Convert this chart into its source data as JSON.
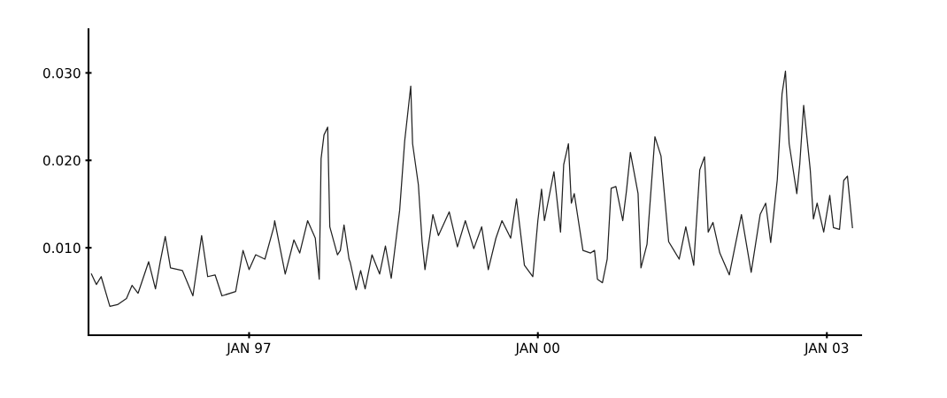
{
  "chart_data": {
    "type": "line",
    "x": [
      "1995-05-14",
      "1995-06-02",
      "1995-06-20",
      "1995-07-23",
      "1995-08-21",
      "1995-09-24",
      "1995-10-15",
      "1995-11-07",
      "1995-12-17",
      "1996-01-12",
      "1996-01-30",
      "1996-02-18",
      "1996-03-09",
      "1996-04-23",
      "1996-06-02",
      "1996-07-05",
      "1996-07-28",
      "1996-08-25",
      "1996-09-20",
      "1996-11-11",
      "1996-12-09",
      "1997-01-01",
      "1997-01-26",
      "1997-03-02",
      "1997-04-05",
      "1997-04-08",
      "1997-05-18",
      "1997-06-20",
      "1997-07-12",
      "1997-08-11",
      "1997-09-09",
      "1997-09-24",
      "1997-10-01",
      "1997-10-12",
      "1997-10-26",
      "1997-11-03",
      "1997-12-02",
      "1997-12-13",
      "1997-12-27",
      "1998-01-15",
      "1998-01-19",
      "1998-02-11",
      "1998-02-28",
      "1998-03-17",
      "1998-04-12",
      "1998-05-11",
      "1998-06-02",
      "1998-06-24",
      "1998-07-26",
      "1998-08-14",
      "1998-09-06",
      "1998-09-13",
      "1998-10-05",
      "1998-10-19",
      "1998-10-30",
      "1998-11-29",
      "1998-12-20",
      "1999-01-30",
      "1999-03-02",
      "1999-04-01",
      "1999-05-03",
      "1999-06-02",
      "1999-06-27",
      "1999-07-26",
      "1999-08-18",
      "1999-09-20",
      "1999-10-12",
      "1999-11-11",
      "1999-12-13",
      "2000-01-01",
      "2000-01-15",
      "2000-01-26",
      "2000-03-02",
      "2000-03-27",
      "2000-04-08",
      "2000-04-26",
      "2000-05-07",
      "2000-05-18",
      "2000-06-20",
      "2000-07-19",
      "2000-08-03",
      "2000-08-14",
      "2000-09-02",
      "2000-09-20",
      "2000-10-05",
      "2000-10-23",
      "2000-11-18",
      "2000-12-02",
      "2000-12-17",
      "2001-01-15",
      "2001-01-26",
      "2001-02-18",
      "2001-03-20",
      "2001-04-12",
      "2001-05-11",
      "2001-06-20",
      "2001-07-15",
      "2001-08-14",
      "2001-09-06",
      "2001-09-24",
      "2001-10-08",
      "2001-10-26",
      "2001-11-21",
      "2001-12-27",
      "2002-02-11",
      "2002-03-20",
      "2002-04-23",
      "2002-05-14",
      "2002-06-02",
      "2002-06-27",
      "2002-07-15",
      "2002-07-28",
      "2002-08-11",
      "2002-09-09",
      "2002-09-20",
      "2002-10-05",
      "2002-10-30",
      "2002-11-11",
      "2002-11-25",
      "2002-12-20",
      "2003-01-12",
      "2003-01-26",
      "2003-02-18",
      "2003-03-06",
      "2003-03-20",
      "2003-04-08"
    ],
    "series": [
      {
        "color": "#222222",
        "values": [
          0.007,
          0.0058,
          0.0067,
          0.0033,
          0.0035,
          0.0042,
          0.0057,
          0.0048,
          0.0084,
          0.0053,
          0.0084,
          0.0113,
          0.0077,
          0.0074,
          0.0045,
          0.0114,
          0.0067,
          0.0069,
          0.0045,
          0.005,
          0.0097,
          0.0075,
          0.0092,
          0.0087,
          0.0124,
          0.0131,
          0.007,
          0.0109,
          0.0094,
          0.0131,
          0.0111,
          0.0064,
          0.0202,
          0.0229,
          0.0238,
          0.0124,
          0.0092,
          0.0097,
          0.0126,
          0.0087,
          0.0084,
          0.0052,
          0.0074,
          0.0053,
          0.0092,
          0.007,
          0.0102,
          0.0065,
          0.0143,
          0.0222,
          0.0285,
          0.0219,
          0.0172,
          0.0107,
          0.0075,
          0.0138,
          0.0114,
          0.0141,
          0.0101,
          0.0131,
          0.0099,
          0.0124,
          0.0075,
          0.0111,
          0.0131,
          0.0111,
          0.0156,
          0.008,
          0.0067,
          0.0131,
          0.0167,
          0.0131,
          0.0187,
          0.0118,
          0.0195,
          0.0219,
          0.0151,
          0.0162,
          0.0097,
          0.0094,
          0.0097,
          0.0064,
          0.006,
          0.0087,
          0.0168,
          0.017,
          0.0131,
          0.0165,
          0.0209,
          0.0162,
          0.0077,
          0.0104,
          0.0227,
          0.0205,
          0.0107,
          0.0087,
          0.0124,
          0.008,
          0.0189,
          0.0204,
          0.0118,
          0.0129,
          0.0094,
          0.0069,
          0.0138,
          0.0072,
          0.0138,
          0.0151,
          0.0106,
          0.0178,
          0.0276,
          0.0302,
          0.0219,
          0.0162,
          0.0195,
          0.0263,
          0.0189,
          0.0133,
          0.0151,
          0.0118,
          0.016,
          0.0123,
          0.0121,
          0.0177,
          0.0182,
          0.0123
        ]
      }
    ],
    "xlim": [
      "1995-05-03",
      "2003-05-11"
    ],
    "xticks": [
      {
        "value": "1997-01-01",
        "label": "JAN 97"
      },
      {
        "value": "2000-01-01",
        "label": "JAN 00"
      },
      {
        "value": "2003-01-01",
        "label": "JAN 03"
      }
    ],
    "ylim": [
      0,
      0.035
    ],
    "yticks": [
      {
        "value": 0.01,
        "label": "0.010"
      },
      {
        "value": 0.02,
        "label": "0.020"
      },
      {
        "value": 0.03,
        "label": "0.030"
      }
    ],
    "grid": false
  }
}
